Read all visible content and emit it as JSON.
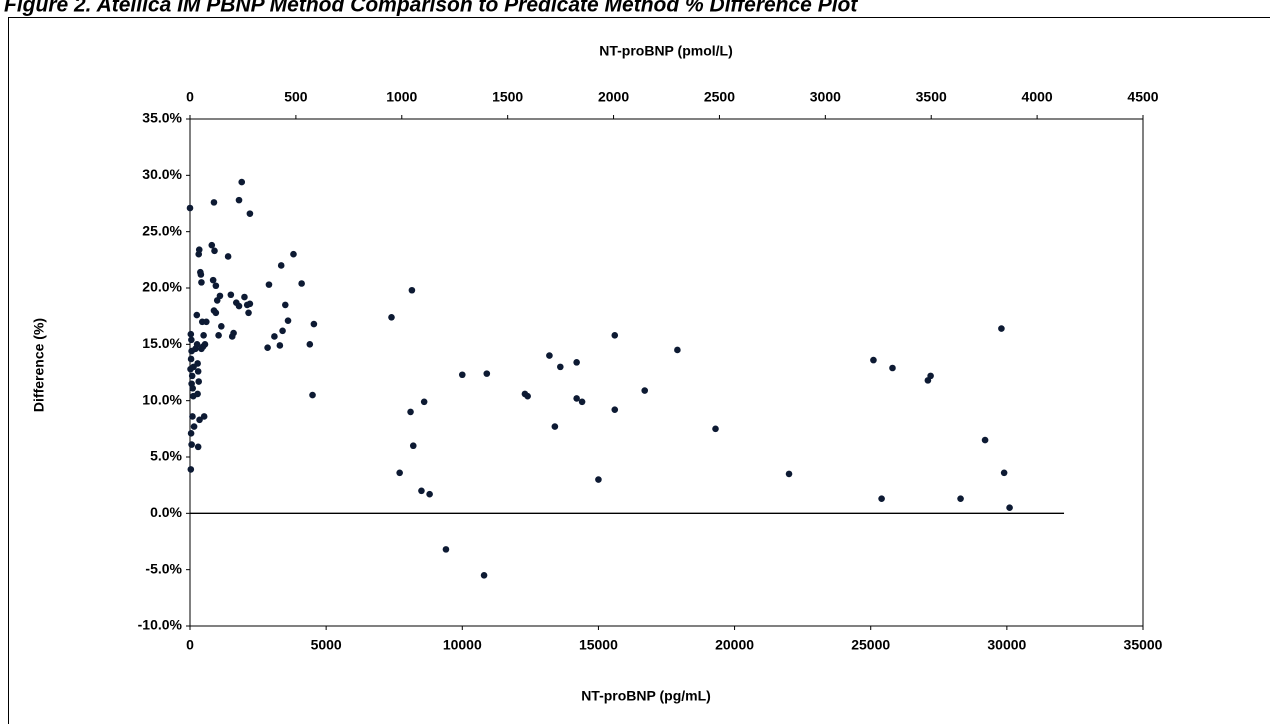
{
  "chart_data": {
    "type": "scatter",
    "title": "Figure 2. Atellica IM PBNP Method Comparison to Predicate Method % Difference Plot",
    "x_label": "NT-proBNP (pg/mL)",
    "x2_label": "NT-proBNP (pmol/L)",
    "y_label": "Difference (%)",
    "xlim": [
      0,
      35000
    ],
    "xticks": [
      0,
      5000,
      10000,
      15000,
      20000,
      25000,
      30000,
      35000
    ],
    "x2lim": [
      0,
      4500
    ],
    "x2ticks": [
      0,
      500,
      1000,
      1500,
      2000,
      2500,
      3000,
      3500,
      4000,
      4500
    ],
    "ylim": [
      -10,
      35
    ],
    "yticks": [
      {
        "value": -10,
        "label": "-10.0%"
      },
      {
        "value": -5,
        "label": "-5.0%"
      },
      {
        "value": 0,
        "label": "0.0%"
      },
      {
        "value": 5,
        "label": "5.0%"
      },
      {
        "value": 10,
        "label": "10.0%"
      },
      {
        "value": 15,
        "label": "15.0%"
      },
      {
        "value": 20,
        "label": "20.0%"
      },
      {
        "value": 25,
        "label": "25.0%"
      },
      {
        "value": 30,
        "label": "30.0%"
      },
      {
        "value": 35,
        "label": "35.0%"
      }
    ],
    "reference_line": {
      "y": 0,
      "x_end": 32100
    },
    "color": "#0d1a33",
    "x": [
      0,
      30,
      50,
      60,
      40,
      20,
      80,
      60,
      100,
      120,
      90,
      150,
      40,
      60,
      30,
      130,
      200,
      250,
      260,
      280,
      300,
      320,
      280,
      350,
      300,
      320,
      340,
      380,
      400,
      420,
      450,
      500,
      480,
      420,
      600,
      550,
      520,
      800,
      880,
      900,
      850,
      950,
      1000,
      1100,
      880,
      950,
      1050,
      1150,
      1400,
      1500,
      1600,
      1550,
      1700,
      1800,
      1800,
      1900,
      2000,
      2100,
      2150,
      2200,
      2200,
      2850,
      2900,
      3100,
      3300,
      3350,
      3400,
      3500,
      3600,
      3800,
      4100,
      4400,
      4500,
      4550,
      7400,
      7700,
      8100,
      8150,
      8200,
      8500,
      8600,
      8800,
      9400,
      10000,
      10800,
      10900,
      12300,
      12400,
      13200,
      13400,
      13600,
      14200,
      14200,
      14400,
      15000,
      15600,
      15600,
      16700,
      17900,
      19300,
      22000,
      25100,
      25400,
      25800,
      27100,
      27200,
      28300,
      29200,
      29800,
      29900,
      30100
    ],
    "values": [
      27.1,
      15.9,
      15.4,
      14.4,
      13.7,
      12.8,
      12.2,
      11.5,
      11.1,
      10.4,
      8.6,
      7.7,
      7.1,
      6.1,
      3.9,
      13.0,
      14.6,
      17.6,
      15.0,
      13.3,
      12.6,
      11.7,
      10.6,
      8.3,
      5.9,
      23.0,
      23.4,
      21.4,
      21.2,
      20.5,
      17.0,
      15.8,
      14.8,
      14.6,
      17.0,
      15.0,
      8.6,
      23.8,
      27.6,
      23.3,
      20.7,
      20.2,
      18.9,
      19.3,
      18.0,
      17.8,
      15.8,
      16.6,
      22.8,
      19.4,
      16.0,
      15.7,
      18.7,
      18.4,
      27.8,
      29.4,
      19.2,
      18.5,
      17.8,
      26.6,
      18.6,
      14.7,
      20.3,
      15.7,
      14.9,
      22.0,
      16.2,
      18.5,
      17.1,
      23.0,
      20.4,
      15.0,
      10.5,
      16.8,
      17.4,
      3.6,
      9.0,
      19.8,
      6.0,
      2.0,
      9.9,
      1.7,
      -3.2,
      12.3,
      -5.5,
      12.4,
      10.6,
      10.4,
      14.0,
      7.7,
      13.0,
      13.4,
      10.2,
      9.9,
      3.0,
      15.8,
      9.2,
      10.9,
      14.5,
      7.5,
      3.5,
      13.6,
      1.3,
      12.9,
      11.8,
      12.2,
      1.3,
      6.5,
      16.4,
      3.6,
      0.5
    ]
  }
}
